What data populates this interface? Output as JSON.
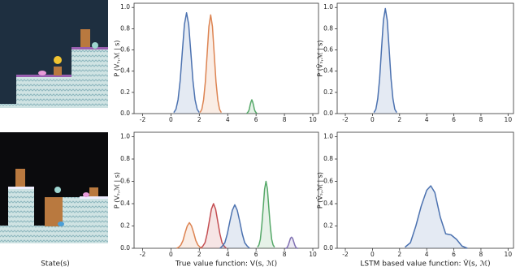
{
  "figure": {
    "state_label": "State(s)"
  },
  "chart_data": [
    {
      "type": "line",
      "ylabel": "P (Vₛ,ℳ | s)",
      "xlim": [
        -2.6,
        10.4
      ],
      "ylim": [
        0,
        1.04
      ],
      "xticks": [
        -2,
        0,
        2,
        4,
        6,
        8,
        10
      ],
      "yticks": [
        {
          "value": 0,
          "label": "0.0"
        },
        {
          "value": 0.2,
          "label": "0.2"
        },
        {
          "value": 0.4,
          "label": "0.4"
        },
        {
          "value": 0.6,
          "label": "0.6"
        },
        {
          "value": 0.8,
          "label": "0.8"
        },
        {
          "value": 1,
          "label": "1.0"
        }
      ],
      "series": [
        {
          "color": "#4c72b0",
          "x": [
            0.2,
            0.35,
            0.5,
            0.65,
            0.8,
            0.95,
            1.1,
            1.25,
            1.4,
            1.55,
            1.7,
            1.85,
            2.0
          ],
          "values": [
            0.01,
            0.04,
            0.13,
            0.31,
            0.58,
            0.84,
            0.95,
            0.84,
            0.58,
            0.31,
            0.13,
            0.04,
            0.01
          ]
        },
        {
          "color": "#dd8452",
          "x": [
            2.05,
            2.175,
            2.3,
            2.425,
            2.55,
            2.675,
            2.8,
            2.925,
            3.05,
            3.175,
            3.3,
            3.425,
            3.55
          ],
          "values": [
            0.01,
            0.04,
            0.13,
            0.3,
            0.56,
            0.82,
            0.93,
            0.82,
            0.56,
            0.3,
            0.13,
            0.04,
            0.01
          ]
        },
        {
          "color": "#55a868",
          "x": [
            5.34,
            5.4,
            5.46,
            5.52,
            5.58,
            5.64,
            5.7,
            5.76,
            5.82,
            5.88,
            5.94,
            6.0,
            6.06
          ],
          "values": [
            0,
            0.01,
            0.02,
            0.04,
            0.08,
            0.11,
            0.13,
            0.11,
            0.08,
            0.04,
            0.02,
            0.01,
            0
          ]
        }
      ]
    },
    {
      "type": "line",
      "ylabel": "P (V̂ₛ,ℳ | s)",
      "xlim": [
        -2.6,
        10.4
      ],
      "ylim": [
        0,
        1.04
      ],
      "xticks": [
        -2,
        0,
        2,
        4,
        6,
        8,
        10
      ],
      "yticks": [
        {
          "value": 0,
          "label": "0.0"
        },
        {
          "value": 0.2,
          "label": "0.2"
        },
        {
          "value": 0.4,
          "label": "0.4"
        },
        {
          "value": 0.6,
          "label": "0.6"
        },
        {
          "value": 0.8,
          "label": "0.8"
        },
        {
          "value": 1,
          "label": "1.0"
        }
      ],
      "series": [
        {
          "color": "#4c72b0",
          "x": [
            0.11,
            0.25,
            0.39,
            0.53,
            0.67,
            0.81,
            0.95,
            1.09,
            1.23,
            1.37,
            1.51,
            1.65,
            1.79
          ],
          "values": [
            0.01,
            0.04,
            0.14,
            0.33,
            0.61,
            0.88,
            0.99,
            0.88,
            0.61,
            0.33,
            0.14,
            0.04,
            0.01
          ]
        }
      ]
    },
    {
      "type": "line",
      "ylabel": "P (Vₛ,ℳ | s)",
      "xlabel": "True value function: V(s, ℳ)",
      "xlim": [
        -2.6,
        10.4
      ],
      "ylim": [
        0,
        1.04
      ],
      "xticks": [
        -2,
        0,
        2,
        4,
        6,
        8,
        10
      ],
      "yticks": [
        {
          "value": 0,
          "label": "0.0"
        },
        {
          "value": 0.2,
          "label": "0.2"
        },
        {
          "value": 0.4,
          "label": "0.4"
        },
        {
          "value": 0.6,
          "label": "0.6"
        },
        {
          "value": 0.8,
          "label": "0.8"
        },
        {
          "value": 1,
          "label": "1.0"
        }
      ],
      "series": [
        {
          "color": "#dd8452",
          "x": [
            0.4,
            0.55,
            0.7,
            0.85,
            1.0,
            1.15,
            1.3,
            1.45,
            1.6,
            1.75,
            1.9,
            2.05,
            2.2
          ],
          "values": [
            0,
            0.01,
            0.03,
            0.07,
            0.14,
            0.2,
            0.23,
            0.2,
            0.14,
            0.07,
            0.03,
            0.01,
            0
          ]
        },
        {
          "color": "#c44e52",
          "x": [
            2.1,
            2.25,
            2.4,
            2.55,
            2.7,
            2.85,
            3.0,
            3.15,
            3.3,
            3.45,
            3.6,
            3.75,
            3.9
          ],
          "values": [
            0,
            0.02,
            0.05,
            0.13,
            0.24,
            0.35,
            0.4,
            0.35,
            0.24,
            0.13,
            0.05,
            0.02,
            0
          ]
        },
        {
          "color": "#4c72b0",
          "x": [
            3.45,
            3.625,
            3.8,
            3.975,
            4.15,
            4.325,
            4.5,
            4.675,
            4.85,
            5.025,
            5.2,
            5.375,
            5.55
          ],
          "values": [
            0,
            0.02,
            0.05,
            0.13,
            0.24,
            0.34,
            0.39,
            0.34,
            0.24,
            0.13,
            0.05,
            0.02,
            0
          ]
        },
        {
          "color": "#55a868",
          "x": [
            6.1,
            6.2,
            6.3,
            6.4,
            6.5,
            6.6,
            6.7,
            6.8,
            6.9,
            7.0,
            7.1,
            7.2,
            7.3
          ],
          "values": [
            0.01,
            0.03,
            0.08,
            0.2,
            0.36,
            0.53,
            0.6,
            0.53,
            0.36,
            0.2,
            0.08,
            0.03,
            0.01
          ]
        },
        {
          "color": "#8172b3",
          "x": [
            8.05,
            8.125,
            8.2,
            8.275,
            8.35,
            8.425,
            8.5,
            8.575,
            8.65,
            8.725,
            8.8,
            8.875,
            8.95
          ],
          "values": [
            0,
            0,
            0.01,
            0.03,
            0.06,
            0.09,
            0.1,
            0.09,
            0.06,
            0.03,
            0.01,
            0,
            0
          ]
        }
      ]
    },
    {
      "type": "line",
      "ylabel": "P (V̂ₛ,ℳ | s)",
      "xlabel": "LSTM based value function: V̂(s, ℳ)",
      "xlim": [
        -2.6,
        10.4
      ],
      "ylim": [
        0,
        1.04
      ],
      "xticks": [
        -2,
        0,
        2,
        4,
        6,
        8,
        10
      ],
      "yticks": [
        {
          "value": 0,
          "label": "0.0"
        },
        {
          "value": 0.2,
          "label": "0.2"
        },
        {
          "value": 0.4,
          "label": "0.4"
        },
        {
          "value": 0.6,
          "label": "0.6"
        },
        {
          "value": 0.8,
          "label": "0.8"
        },
        {
          "value": 1,
          "label": "1.0"
        }
      ],
      "series": [
        {
          "color": "#4c72b0",
          "x": [
            2.4,
            2.8,
            3.2,
            3.6,
            4.0,
            4.3,
            4.6,
            5.0,
            5.4,
            5.8,
            6.2,
            6.6,
            7.0
          ],
          "values": [
            0.01,
            0.05,
            0.2,
            0.38,
            0.52,
            0.56,
            0.5,
            0.28,
            0.13,
            0.12,
            0.08,
            0.02,
            0
          ]
        }
      ]
    }
  ]
}
